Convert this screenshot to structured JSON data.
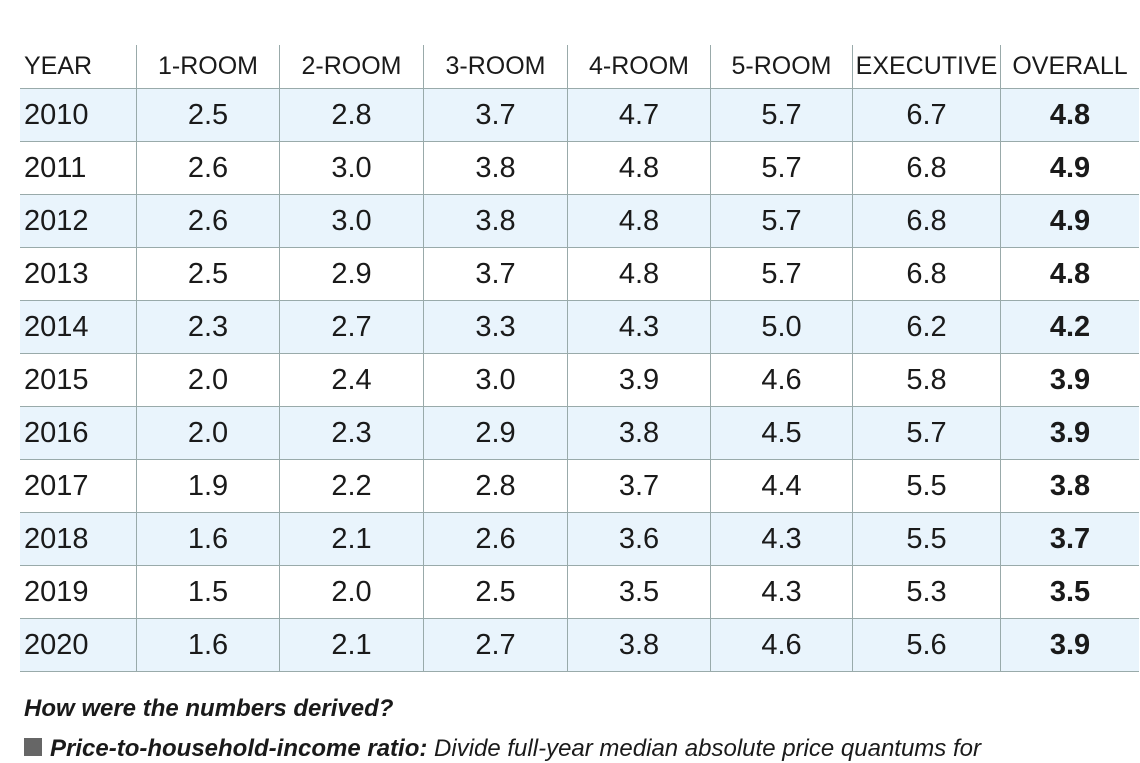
{
  "table": {
    "header": [
      "YEAR",
      "1-ROOM",
      "2-ROOM",
      "3-ROOM",
      "4-ROOM",
      "5-ROOM",
      "EXECUTIVE",
      "OVERALL"
    ],
    "rows": [
      [
        "2010",
        "2.5",
        "2.8",
        "3.7",
        "4.7",
        "5.7",
        "6.7",
        "4.8"
      ],
      [
        "2011",
        "2.6",
        "3.0",
        "3.8",
        "4.8",
        "5.7",
        "6.8",
        "4.9"
      ],
      [
        "2012",
        "2.6",
        "3.0",
        "3.8",
        "4.8",
        "5.7",
        "6.8",
        "4.9"
      ],
      [
        "2013",
        "2.5",
        "2.9",
        "3.7",
        "4.8",
        "5.7",
        "6.8",
        "4.8"
      ],
      [
        "2014",
        "2.3",
        "2.7",
        "3.3",
        "4.3",
        "5.0",
        "6.2",
        "4.2"
      ],
      [
        "2015",
        "2.0",
        "2.4",
        "3.0",
        "3.9",
        "4.6",
        "5.8",
        "3.9"
      ],
      [
        "2016",
        "2.0",
        "2.3",
        "2.9",
        "3.8",
        "4.5",
        "5.7",
        "3.9"
      ],
      [
        "2017",
        "1.9",
        "2.2",
        "2.8",
        "3.7",
        "4.4",
        "5.5",
        "3.8"
      ],
      [
        "2018",
        "1.6",
        "2.1",
        "2.6",
        "3.6",
        "4.3",
        "5.5",
        "3.7"
      ],
      [
        "2019",
        "1.5",
        "2.0",
        "2.5",
        "3.5",
        "4.3",
        "5.3",
        "3.5"
      ],
      [
        "2020",
        "1.6",
        "2.1",
        "2.7",
        "3.8",
        "4.6",
        "5.6",
        "3.9"
      ]
    ]
  },
  "notes": {
    "heading": "How were the numbers derived?",
    "items": [
      {
        "term": "Price-to-household-income ratio:",
        "text": "Divide full-year median absolute price quantums for"
      }
    ]
  }
}
